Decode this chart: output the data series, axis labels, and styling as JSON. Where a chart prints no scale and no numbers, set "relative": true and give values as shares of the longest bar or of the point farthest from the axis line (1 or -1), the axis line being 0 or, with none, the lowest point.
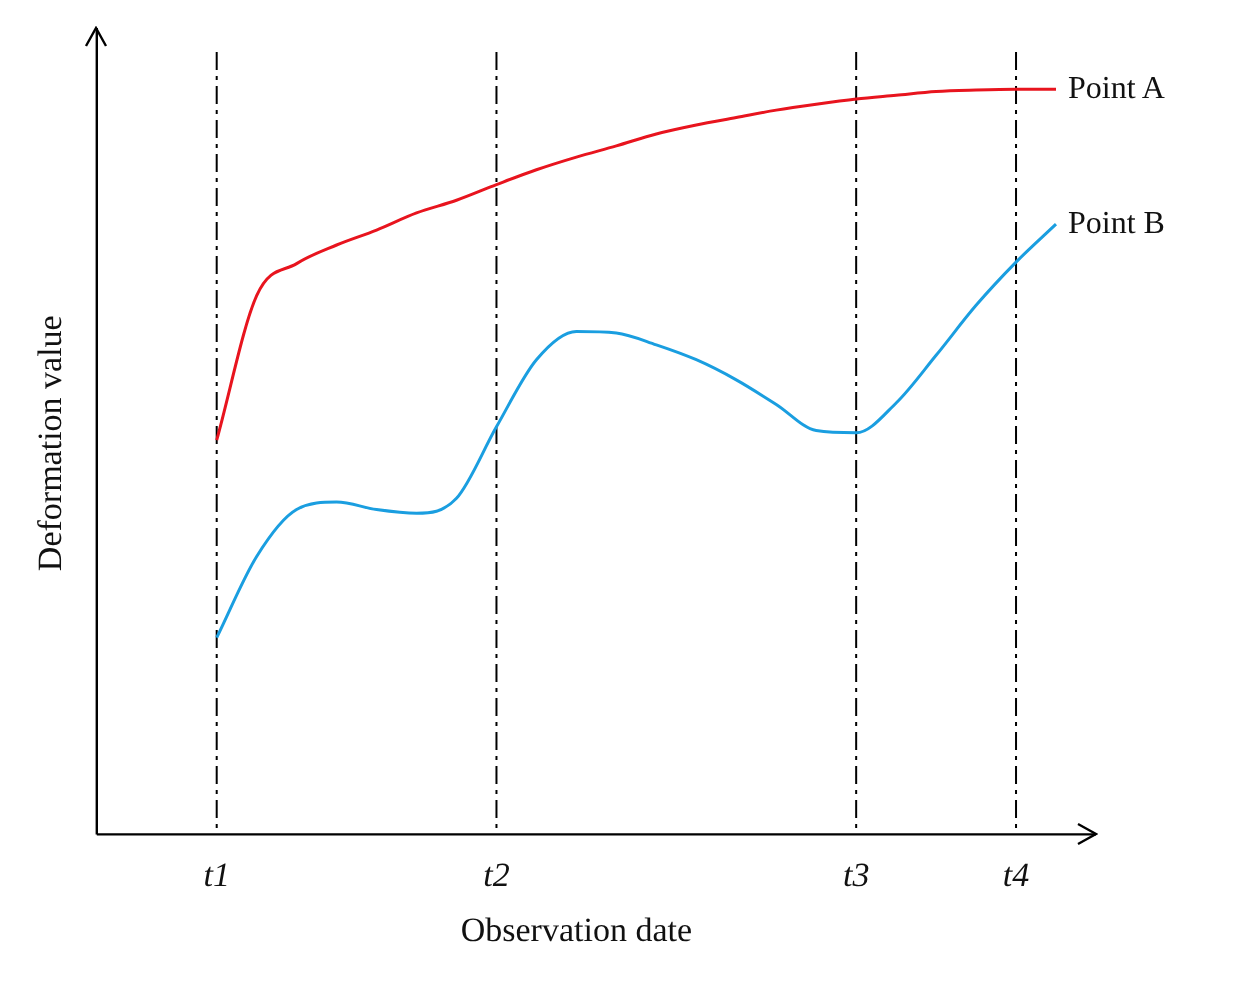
{
  "chart_data": {
    "type": "line",
    "relative": true,
    "xlabel": "Observation date",
    "ylabel": "Deformation value",
    "categories": [
      null,
      null,
      null,
      "t1",
      null,
      null,
      null,
      null,
      null,
      null,
      "t2",
      null,
      null,
      null,
      null,
      null,
      null,
      null,
      null,
      "t3",
      null,
      null,
      null,
      "t4",
      null
    ],
    "tick_labels": "x",
    "grid": false,
    "legend": false,
    "marker": "none",
    "line_style": "solid",
    "series": [
      {
        "name": "Point A",
        "color": "#e8141e",
        "values": [
          null,
          null,
          null,
          0.529,
          0.723,
          0.766,
          0.791,
          0.811,
          0.834,
          0.851,
          0.872,
          0.892,
          0.909,
          0.924,
          0.94,
          0.952,
          0.962,
          0.972,
          0.98,
          0.987,
          0.992,
          0.997,
          0.999,
          1,
          1
        ]
      },
      {
        "name": "Point B",
        "color": "#1a9ee0",
        "values": [
          null,
          null,
          null,
          0.264,
          0.373,
          0.436,
          0.446,
          0.436,
          0.431,
          0.451,
          0.547,
          0.637,
          0.675,
          0.673,
          0.657,
          0.637,
          0.61,
          0.577,
          0.542,
          0.539,
          0.579,
          0.643,
          0.71,
          0.768,
          0.819
        ]
      }
    ],
    "ref_lines": [
      {
        "axis": "x",
        "value": "t1",
        "color": "#000000",
        "line_style": "dashed"
      },
      {
        "axis": "x",
        "value": "t2",
        "color": "#000000",
        "line_style": "dashed"
      },
      {
        "axis": "x",
        "value": "t3",
        "color": "#000000",
        "line_style": "dashed"
      },
      {
        "axis": "x",
        "value": "t4",
        "color": "#000000",
        "line_style": "dashed"
      }
    ]
  }
}
